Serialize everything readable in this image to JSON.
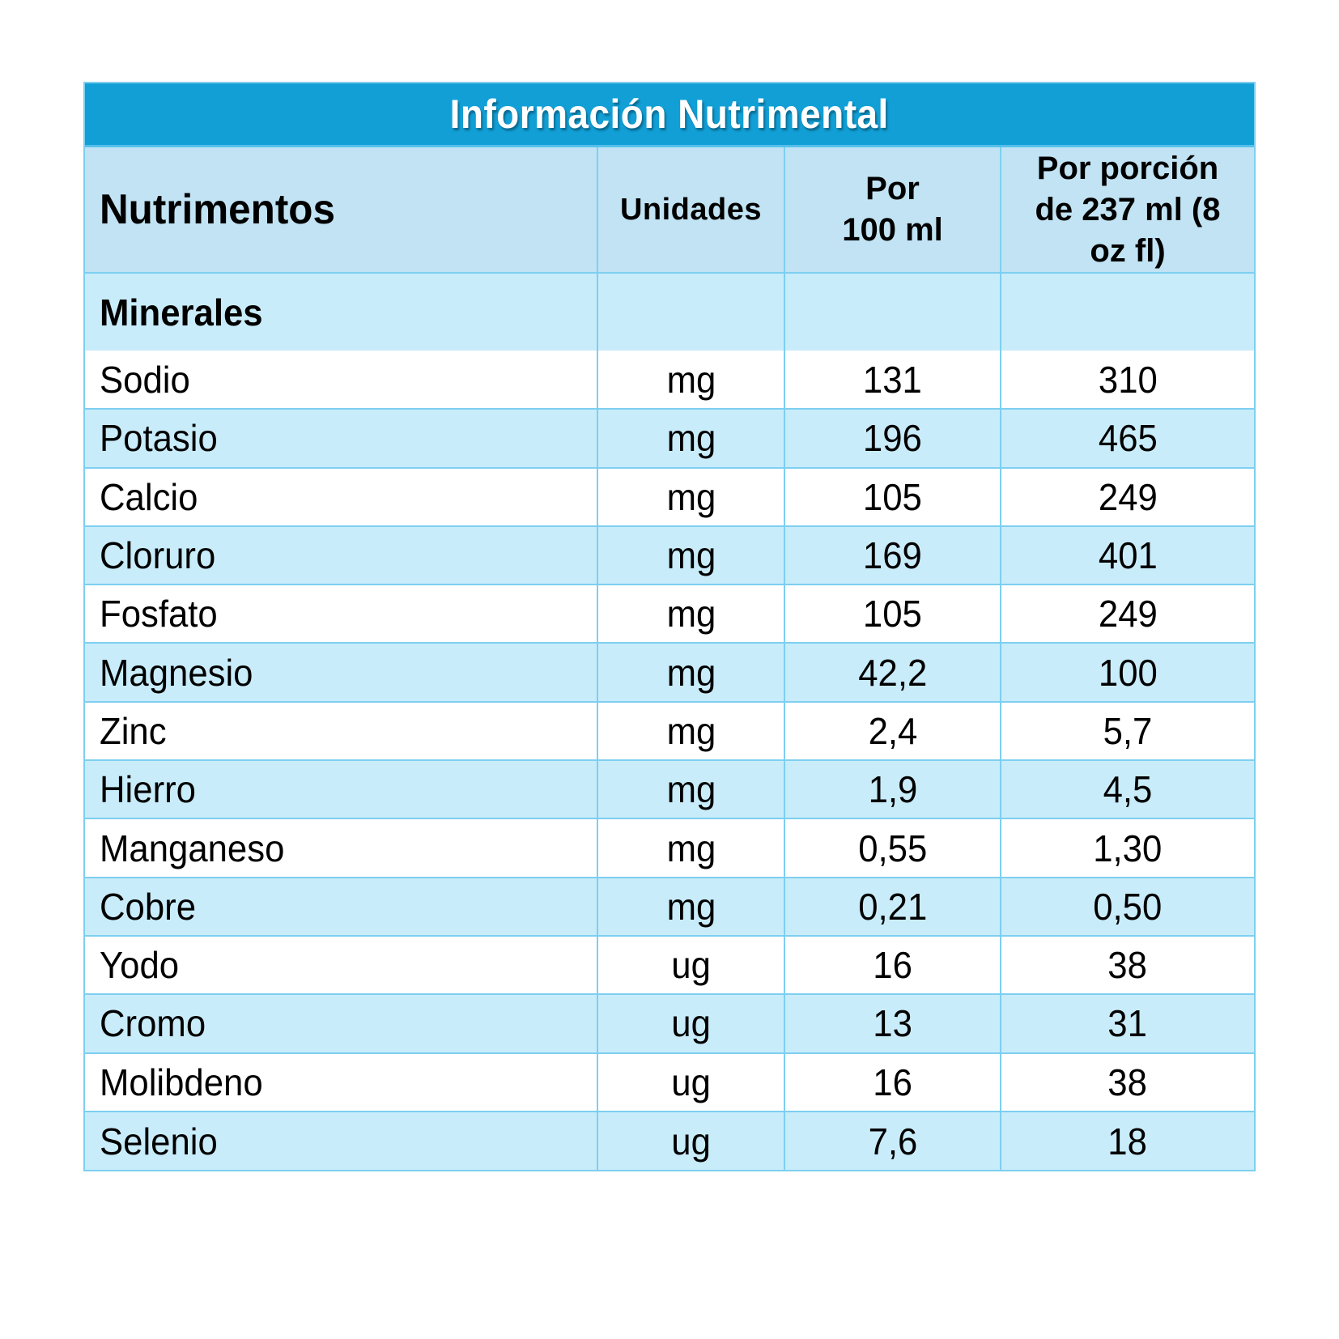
{
  "title": "Información Nutrimental",
  "headers": {
    "nutrient": "Nutrimentos",
    "units": "Unidades",
    "per_100ml_line1": "Por",
    "per_100ml_line2": "100 ml",
    "per_serving_line1": "Por porción",
    "per_serving_line2": "de 237 ml (8",
    "per_serving_line3": "oz fl)"
  },
  "section": {
    "label": "Minerales"
  },
  "rows": [
    {
      "nutrient": "Sodio",
      "unit": "mg",
      "per_100ml": "131",
      "per_serving": "310",
      "shade": "white"
    },
    {
      "nutrient": "Potasio",
      "unit": "mg",
      "per_100ml": "196",
      "per_serving": "465",
      "shade": "blue"
    },
    {
      "nutrient": "Calcio",
      "unit": "mg",
      "per_100ml": "105",
      "per_serving": "249",
      "shade": "white"
    },
    {
      "nutrient": "Cloruro",
      "unit": "mg",
      "per_100ml": "169",
      "per_serving": "401",
      "shade": "blue"
    },
    {
      "nutrient": "Fosfato",
      "unit": "mg",
      "per_100ml": "105",
      "per_serving": "249",
      "shade": "white"
    },
    {
      "nutrient": "Magnesio",
      "unit": "mg",
      "per_100ml": "42,2",
      "per_serving": "100",
      "shade": "blue"
    },
    {
      "nutrient": "Zinc",
      "unit": "mg",
      "per_100ml": "2,4",
      "per_serving": "5,7",
      "shade": "white"
    },
    {
      "nutrient": "Hierro",
      "unit": "mg",
      "per_100ml": "1,9",
      "per_serving": "4,5",
      "shade": "blue"
    },
    {
      "nutrient": "Manganeso",
      "unit": "mg",
      "per_100ml": "0,55",
      "per_serving": "1,30",
      "shade": "white"
    },
    {
      "nutrient": "Cobre",
      "unit": "mg",
      "per_100ml": "0,21",
      "per_serving": "0,50",
      "shade": "blue"
    },
    {
      "nutrient": "Yodo",
      "unit": "ug",
      "per_100ml": "16",
      "per_serving": "38",
      "shade": "white"
    },
    {
      "nutrient": "Cromo",
      "unit": "ug",
      "per_100ml": "13",
      "per_serving": "31",
      "shade": "blue"
    },
    {
      "nutrient": "Molibdeno",
      "unit": "ug",
      "per_100ml": "16",
      "per_serving": "38",
      "shade": "white"
    },
    {
      "nutrient": "Selenio",
      "unit": "ug",
      "per_100ml": "7,6",
      "per_serving": "18",
      "shade": "blue"
    }
  ],
  "colors": {
    "title_band": "#119fd6",
    "header_bg": "#c1e3f3",
    "row_blue": "#c9ecfa",
    "row_white": "#ffffff",
    "border": "#7dcff0"
  }
}
